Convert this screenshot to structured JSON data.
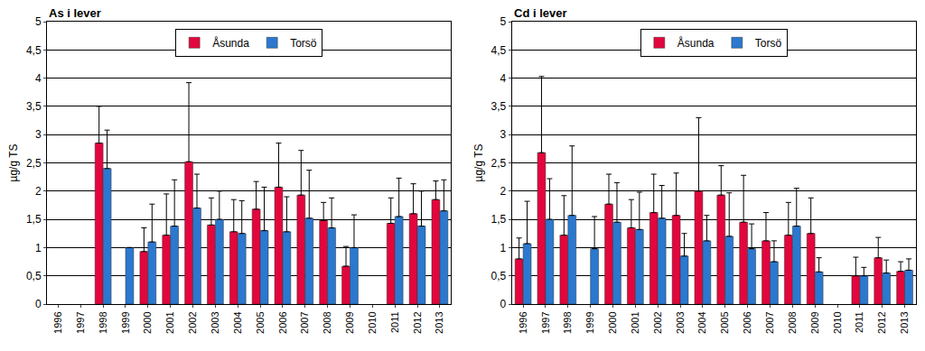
{
  "chart_data": [
    {
      "type": "bar",
      "title": "As i lever",
      "y_label": "µg/g TS",
      "categories": [
        "1996",
        "1997",
        "1998",
        "1999",
        "2000",
        "2001",
        "2002",
        "2003",
        "2004",
        "2005",
        "2006",
        "2007",
        "2008",
        "2009",
        "2010",
        "2011",
        "2012",
        "2013"
      ],
      "series": [
        {
          "name": "Åsunda",
          "color": "#e3063c",
          "values": [
            null,
            null,
            2.85,
            null,
            0.93,
            1.22,
            2.52,
            1.4,
            1.28,
            1.68,
            2.07,
            1.93,
            1.48,
            0.67,
            null,
            1.43,
            1.6,
            1.85
          ],
          "errors": [
            null,
            null,
            0.65,
            null,
            0.42,
            0.73,
            1.4,
            0.48,
            0.57,
            0.49,
            0.78,
            0.79,
            0.32,
            0.35,
            null,
            0.45,
            0.53,
            0.33
          ]
        },
        {
          "name": "Torsö",
          "color": "#2b78d0",
          "values": [
            null,
            null,
            2.4,
            1.0,
            1.1,
            1.38,
            1.7,
            1.5,
            1.25,
            1.3,
            1.28,
            1.52,
            1.35,
            1.0,
            null,
            1.55,
            1.38,
            1.65
          ],
          "errors": [
            null,
            null,
            0.68,
            null,
            0.67,
            0.82,
            0.6,
            0.5,
            0.58,
            0.77,
            0.62,
            0.85,
            0.53,
            0.58,
            null,
            0.68,
            0.62,
            0.55
          ]
        }
      ],
      "ylim": [
        0,
        5
      ],
      "yticks": [
        0,
        {
          "value": 0.5,
          "label": "0,5"
        },
        1,
        {
          "value": 1.5,
          "label": "1,5"
        },
        2,
        {
          "value": 2.5,
          "label": "2,5"
        },
        3,
        {
          "value": 3.5,
          "label": "3,5"
        },
        4,
        {
          "value": 4.5,
          "label": "4,5"
        },
        5
      ],
      "grid": true,
      "legend": "top"
    },
    {
      "type": "bar",
      "title": "Cd i lever",
      "y_label": "µg/g TS",
      "categories": [
        "1996",
        "1997",
        "1998",
        "1999",
        "2000",
        "2001",
        "2002",
        "2003",
        "2004",
        "2005",
        "2006",
        "2007",
        "2008",
        "2009",
        "2010",
        "2011",
        "2012",
        "2013"
      ],
      "series": [
        {
          "name": "Åsunda",
          "color": "#e3063c",
          "values": [
            0.8,
            2.68,
            1.22,
            null,
            1.77,
            1.35,
            1.62,
            1.57,
            2.0,
            1.93,
            1.45,
            1.12,
            1.22,
            1.25,
            null,
            0.5,
            0.82,
            0.58
          ],
          "errors": [
            0.37,
            1.35,
            0.7,
            null,
            0.53,
            0.5,
            0.68,
            0.75,
            1.3,
            0.52,
            0.83,
            0.5,
            0.58,
            0.63,
            null,
            0.33,
            0.36,
            0.17
          ]
        },
        {
          "name": "Torsö",
          "color": "#2b78d0",
          "values": [
            1.07,
            1.5,
            1.57,
            0.98,
            1.45,
            1.32,
            1.52,
            0.85,
            1.12,
            1.2,
            0.98,
            0.75,
            1.38,
            0.57,
            null,
            0.5,
            0.55,
            0.6
          ],
          "errors": [
            0.75,
            0.72,
            1.23,
            0.57,
            0.7,
            0.66,
            0.58,
            0.4,
            0.45,
            0.77,
            0.44,
            0.37,
            0.67,
            0.25,
            null,
            0.15,
            0.23,
            0.2
          ]
        }
      ],
      "ylim": [
        0,
        5
      ],
      "yticks": [
        0,
        {
          "value": 0.5,
          "label": "0,5"
        },
        1,
        {
          "value": 1.5,
          "label": "1,5"
        },
        2,
        {
          "value": 2.5,
          "label": "2,5"
        },
        3,
        {
          "value": 3.5,
          "label": "3,5"
        },
        4,
        {
          "value": 4.5,
          "label": "4,5"
        },
        5
      ],
      "grid": true,
      "legend": "top"
    }
  ]
}
